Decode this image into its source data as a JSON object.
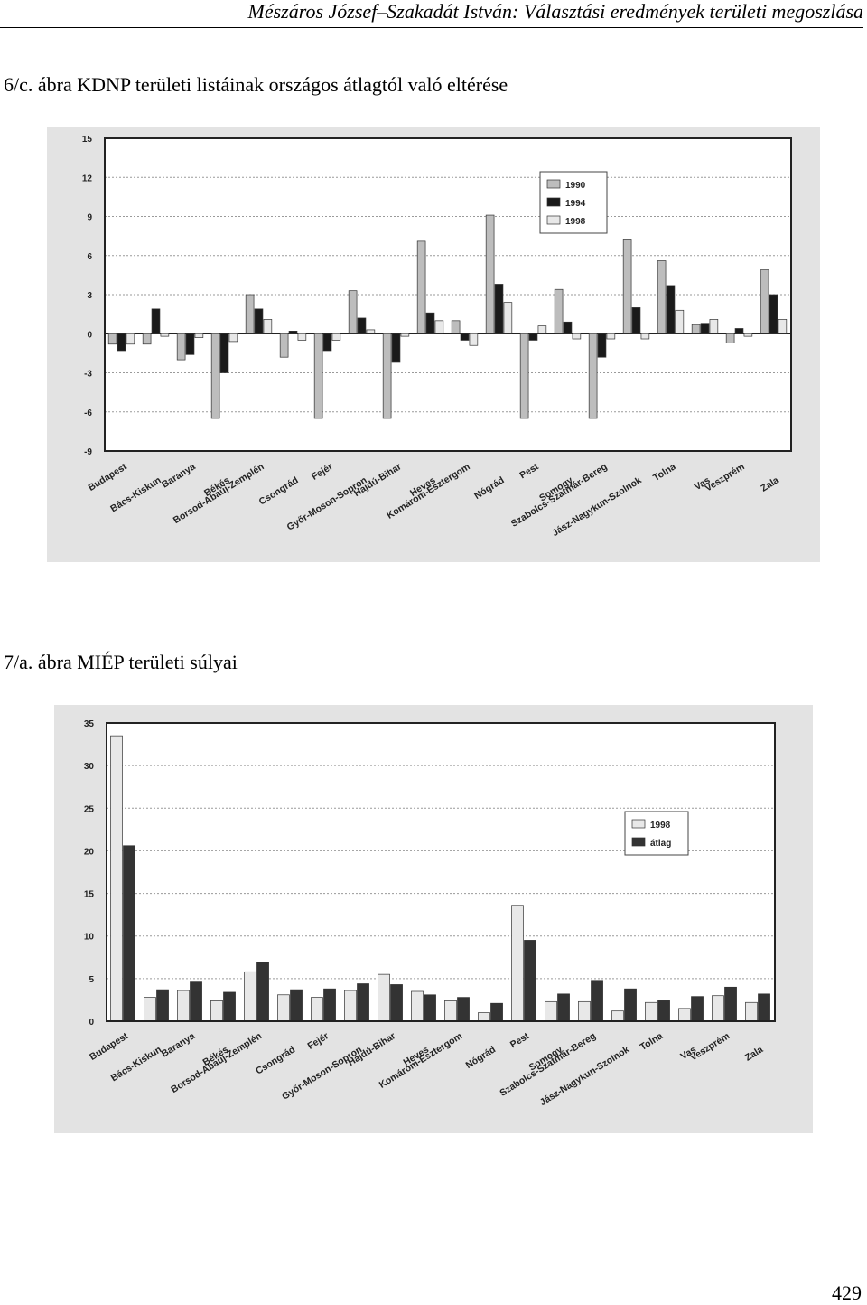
{
  "header": {
    "running_title": "Mészáros József–Szakadát István: Választási eredmények területi megoszlása"
  },
  "figures": [
    {
      "caption": "6/c. ábra KDNP területi listáinak országos átlagtól való eltérése"
    },
    {
      "caption": "7/a. ábra MIÉP területi súlyai"
    }
  ],
  "page_number": "429",
  "colors": {
    "figure_background": "#e3e3e3",
    "plot_background": "#ffffff",
    "series_light_gray": "#bdbdbd",
    "series_black": "#1a1a1a",
    "series_very_light": "#e8e8e8",
    "series_dark_gray": "#333333"
  },
  "chart_data": [
    {
      "type": "bar",
      "title": "",
      "xlabel": "",
      "ylabel": "",
      "ylim": [
        -9,
        15
      ],
      "yticks": [
        "15",
        "12",
        "9",
        "6",
        "3",
        "0",
        "-3",
        "-6",
        "-9"
      ],
      "grid": true,
      "legend": "top-right",
      "categories": [
        "Budapest",
        "Bács-Kiskun",
        "Baranya",
        "Békés",
        "Borsod-Abaúj-Zemplén",
        "Csongrád",
        "Fejér",
        "Győr-Moson-Sopron",
        "Hajdú-Bihar",
        "Heves",
        "Komárom-Esztergom",
        "Nógrád",
        "Pest",
        "Somogy",
        "Szabolcs-Szatmár-Bereg",
        "Jász-Nagykun-Szolnok",
        "Tolna",
        "Vas",
        "Veszprém",
        "Zala"
      ],
      "series": [
        {
          "name": "1990",
          "color": "#bdbdbd",
          "values": [
            -0.8,
            -0.8,
            -2.0,
            -6.5,
            3.0,
            -1.8,
            -6.5,
            3.3,
            -6.5,
            7.1,
            1.0,
            9.1,
            -6.5,
            3.4,
            -6.5,
            7.2,
            5.6,
            0.7,
            -0.7,
            4.9
          ]
        },
        {
          "name": "1994",
          "color": "#1a1a1a",
          "values": [
            -1.3,
            1.9,
            -1.6,
            -3.0,
            1.9,
            0.2,
            -1.3,
            1.2,
            -2.2,
            1.6,
            -0.5,
            3.8,
            -0.5,
            0.9,
            -1.8,
            2.0,
            3.7,
            0.8,
            0.4,
            3.0
          ]
        },
        {
          "name": "1998",
          "color": "#e8e8e8",
          "values": [
            -0.8,
            -0.2,
            -0.3,
            -0.6,
            1.1,
            -0.5,
            -0.5,
            0.3,
            -0.2,
            1.0,
            -0.9,
            2.4,
            0.6,
            -0.4,
            -0.4,
            -0.4,
            1.8,
            1.1,
            -0.2,
            1.1
          ]
        }
      ]
    },
    {
      "type": "bar",
      "title": "",
      "xlabel": "",
      "ylabel": "",
      "ylim": [
        0,
        35
      ],
      "yticks": [
        "35",
        "30",
        "25",
        "20",
        "15",
        "10",
        "5",
        "0"
      ],
      "grid": true,
      "legend": "top-right",
      "categories": [
        "Budapest",
        "Bács-Kiskun",
        "Baranya",
        "Békés",
        "Borsod-Abaúj-Zemplén",
        "Csongrád",
        "Fejér",
        "Győr-Moson-Sopron",
        "Hajdú-Bihar",
        "Heves",
        "Komárom-Esztergom",
        "Nógrád",
        "Pest",
        "Somogy",
        "Szabolcs-Szatmár-Bereg",
        "Jász-Nagykun-Szolnok",
        "Tolna",
        "Vas",
        "Veszprém",
        "Zala"
      ],
      "series": [
        {
          "name": "1998",
          "color": "#e8e8e8",
          "values": [
            33.5,
            2.8,
            3.6,
            2.4,
            5.8,
            3.1,
            2.8,
            3.6,
            5.5,
            3.5,
            2.4,
            1.0,
            13.6,
            2.3,
            2.3,
            1.2,
            2.2,
            1.5,
            3.0,
            2.2
          ]
        },
        {
          "name": "átlag",
          "color": "#333333",
          "values": [
            20.6,
            3.7,
            4.6,
            3.4,
            6.9,
            3.7,
            3.8,
            4.4,
            4.3,
            3.1,
            2.8,
            2.1,
            9.5,
            3.2,
            4.8,
            3.8,
            2.4,
            2.9,
            4.0,
            3.2
          ]
        }
      ]
    }
  ]
}
